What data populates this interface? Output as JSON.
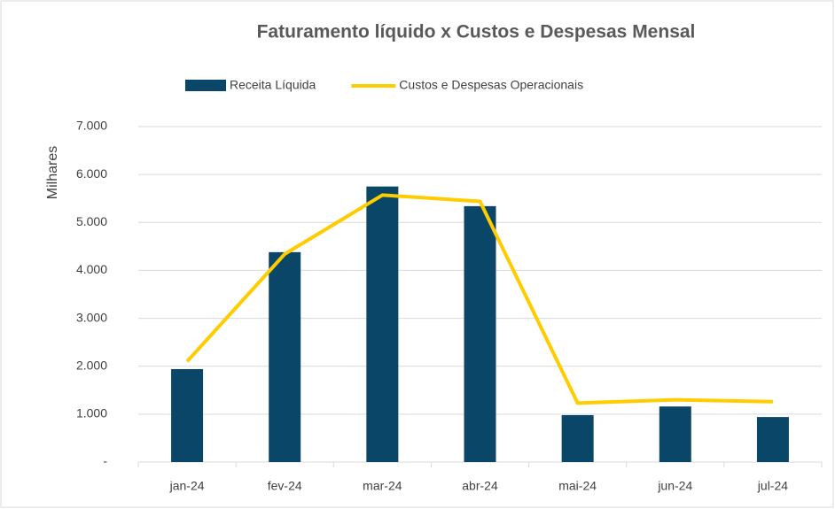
{
  "chart_data": {
    "type": "bar-line",
    "title": "Faturamento líquido x Custos e Despesas Mensal",
    "y_axis_label": "Milhares",
    "categories": [
      "jan-24",
      "fev-24",
      "mar-24",
      "abr-24",
      "mai-24",
      "jun-24",
      "jul-24"
    ],
    "series": [
      {
        "name": "Receita Líquida",
        "type": "bar",
        "color": "#0a4668",
        "values": [
          1940,
          4380,
          5750,
          5340,
          980,
          1160,
          940
        ]
      },
      {
        "name": "Custos e Despesas Operacionais",
        "type": "line",
        "color": "#ffcc00",
        "values": [
          2100,
          4340,
          5570,
          5440,
          1230,
          1300,
          1260
        ]
      }
    ],
    "ylim": [
      0,
      7000
    ],
    "yticks": [
      {
        "value": 0,
        "label": "-"
      },
      {
        "value": 1000,
        "label": "1.000"
      },
      {
        "value": 2000,
        "label": "2.000"
      },
      {
        "value": 3000,
        "label": "3.000"
      },
      {
        "value": 4000,
        "label": "4.000"
      },
      {
        "value": 5000,
        "label": "5.000"
      },
      {
        "value": 6000,
        "label": "6.000"
      },
      {
        "value": 7000,
        "label": "7.000"
      }
    ],
    "grid": true,
    "legend": "top"
  }
}
